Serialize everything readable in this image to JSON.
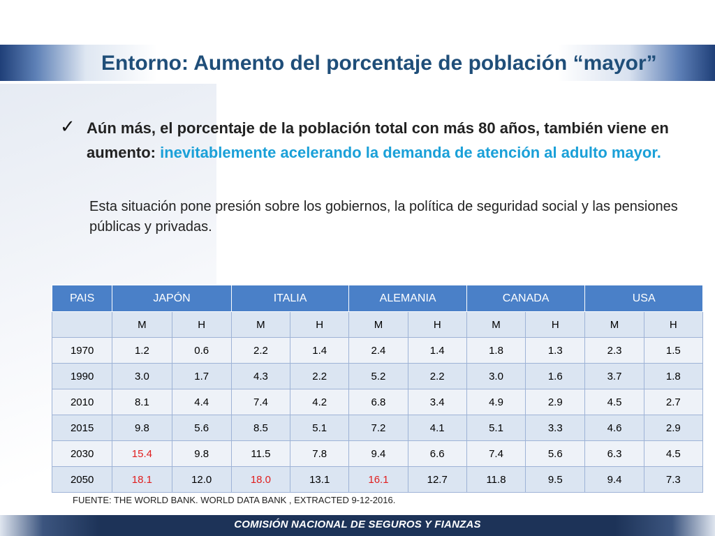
{
  "title": "Entorno: Aumento del porcentaje de población “mayor”",
  "bullet": {
    "text_dark": "Aún más, el porcentaje de la población total con más 80 años, también viene en aumento: ",
    "text_highlight": "inevitablemente acelerando la demanda de atención al adulto mayor."
  },
  "paragraph": "Esta situación pone presión sobre los gobiernos, la política de seguridad social y las pensiones públicas y privadas.",
  "table": {
    "header": [
      "PAIS",
      "JAPÓN",
      "ITALIA",
      "ALEMANIA",
      "CANADA",
      "USA"
    ],
    "subheader": [
      "",
      "M",
      "H",
      "M",
      "H",
      "M",
      "H",
      "M",
      "H",
      "M",
      "H"
    ],
    "rows": [
      [
        "1970",
        "1.2",
        "0.6",
        "2.2",
        "1.4",
        "2.4",
        "1.4",
        "1.8",
        "1.3",
        "2.3",
        "1.5"
      ],
      [
        "1990",
        "3.0",
        "1.7",
        "4.3",
        "2.2",
        "5.2",
        "2.2",
        "3.0",
        "1.6",
        "3.7",
        "1.8"
      ],
      [
        "2010",
        "8.1",
        "4.4",
        "7.4",
        "4.2",
        "6.8",
        "3.4",
        "4.9",
        "2.9",
        "4.5",
        "2.7"
      ],
      [
        "2015",
        "9.8",
        "5.6",
        "8.5",
        "5.1",
        "7.2",
        "4.1",
        "5.1",
        "3.3",
        "4.6",
        "2.9"
      ],
      [
        "2030",
        "15.4",
        "9.8",
        "11.5",
        "7.8",
        "9.4",
        "6.6",
        "7.4",
        "5.6",
        "6.3",
        "4.5"
      ],
      [
        "2050",
        "18.1",
        "12.0",
        "18.0",
        "13.1",
        "16.1",
        "12.7",
        "11.8",
        "9.5",
        "9.4",
        "7.3"
      ]
    ]
  },
  "source": "FUENTE: THE WORLD BANK. WORLD DATA BANK , EXTRACTED 9-12-2016.",
  "footer": "COMISIÓN NACIONAL DE SEGUROS Y FIANZAS",
  "colors": {
    "title": "#1f4e79",
    "highlight": "#1aa0d8",
    "table_header": "#4a80c8",
    "emphasis_red": "#e01e1e",
    "footer_band": "#1d3358"
  }
}
